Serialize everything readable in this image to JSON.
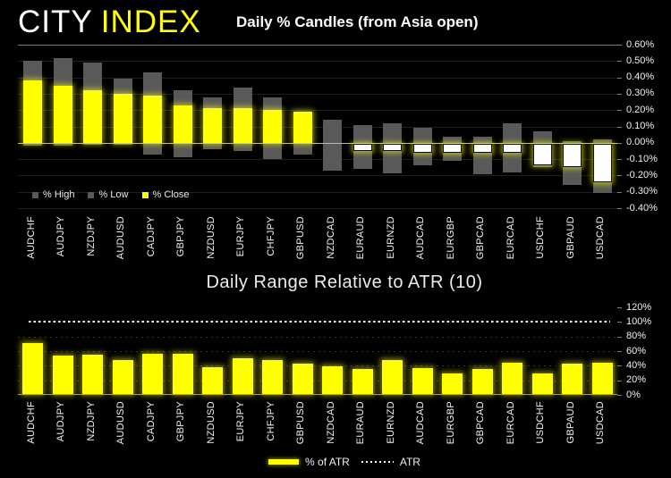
{
  "header": {
    "logo": {
      "part1": "CITY",
      "part2": "INDEX"
    },
    "brand_colors": {
      "part1": "#ffffff",
      "part2": "#ffff00"
    }
  },
  "chart_data": [
    {
      "type": "bar",
      "name": "daily-percent-candles",
      "title": "Daily % Candles (from Asia open)",
      "categories": [
        "AUDCHF",
        "AUDJPY",
        "NZDJPY",
        "AUDUSD",
        "CADJPY",
        "GBPJPY",
        "NZDUSD",
        "EURJPY",
        "CHFJPY",
        "GBPUSD",
        "NZDCAD",
        "EURAUD",
        "EURNZD",
        "AUDCAD",
        "EURGBP",
        "GBPCAD",
        "EURCAD",
        "USDCHF",
        "GBPAUD",
        "USDCAD"
      ],
      "series": [
        {
          "name": "% High",
          "color": "#595959",
          "values": [
            0.5,
            0.52,
            0.49,
            0.39,
            0.43,
            0.32,
            0.28,
            0.34,
            0.28,
            0.19,
            0.14,
            0.11,
            0.12,
            0.09,
            0.04,
            0.04,
            0.12,
            0.07,
            0.01,
            0.02
          ]
        },
        {
          "name": "% Low",
          "color": "#595959",
          "values": [
            -0.02,
            -0.02,
            -0.01,
            -0.01,
            -0.07,
            -0.09,
            -0.04,
            -0.05,
            -0.1,
            -0.07,
            -0.17,
            -0.16,
            -0.19,
            -0.14,
            -0.11,
            -0.19,
            -0.18,
            -0.15,
            -0.26,
            -0.31
          ]
        },
        {
          "name": "% Close",
          "color": "#ffff00",
          "values": [
            0.38,
            0.35,
            0.32,
            0.3,
            0.29,
            0.23,
            0.21,
            0.21,
            0.2,
            0.19,
            0.0,
            -0.05,
            -0.05,
            -0.06,
            -0.06,
            -0.06,
            -0.06,
            -0.14,
            -0.15,
            -0.24
          ]
        }
      ],
      "negative_close_fill": "#ffffff",
      "ylim": [
        -0.4,
        0.6
      ],
      "grid": true,
      "legend_position": "bottom-left-inside",
      "yaxis": {
        "side": "right",
        "values": [
          0.6,
          0.5,
          0.4,
          0.3,
          0.2,
          0.1,
          0.0,
          -0.1,
          -0.2,
          -0.3,
          -0.4
        ],
        "labels": [
          "0.60%",
          "0.50%",
          "0.40%",
          "0.30%",
          "0.20%",
          "0.10%",
          "0.00%",
          "-0.10%",
          "-0.20%",
          "-0.30%",
          "-0.40%"
        ]
      }
    },
    {
      "type": "bar",
      "name": "daily-range-relative-to-atr",
      "title": "Daily Range Relative to ATR (10)",
      "categories": [
        "AUDCHF",
        "AUDJPY",
        "NZDJPY",
        "AUDUSD",
        "CADJPY",
        "GBPJPY",
        "NZDUSD",
        "EURJPY",
        "CHFJPY",
        "GBPUSD",
        "NZDCAD",
        "EURAUD",
        "EURNZD",
        "AUDCAD",
        "EURGBP",
        "GBPCAD",
        "EURCAD",
        "USDCHF",
        "GBPAUD",
        "USDCAD"
      ],
      "series": [
        {
          "name": "% of ATR",
          "color": "#ffff00",
          "values": [
            71,
            54,
            55,
            48,
            57,
            57,
            38,
            50,
            48,
            43,
            39,
            35,
            48,
            37,
            29,
            36,
            44,
            29,
            43,
            44
          ]
        },
        {
          "name": "ATR",
          "style": "dotted-line",
          "color": "#ffffff",
          "value": 100
        }
      ],
      "ylim": [
        0,
        120
      ],
      "grid": true,
      "legend_position": "bottom-center",
      "yaxis": {
        "side": "right",
        "values": [
          120,
          100,
          80,
          60,
          40,
          20,
          0
        ],
        "labels": [
          "120%",
          "100%",
          "80%",
          "60%",
          "40%",
          "20%",
          "0%"
        ]
      }
    }
  ]
}
